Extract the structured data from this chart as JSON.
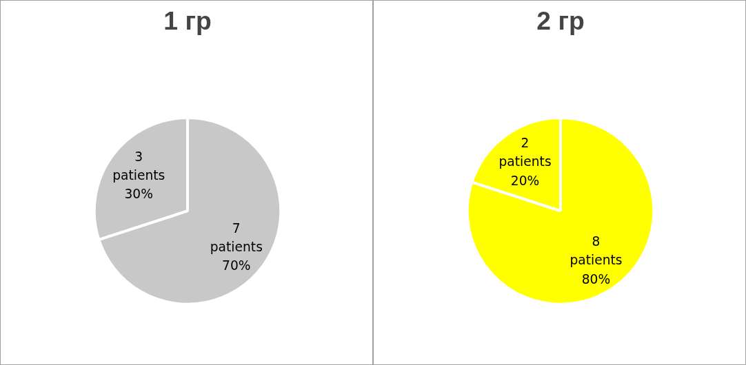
{
  "chart_data": [
    {
      "type": "pie",
      "title": "1 гр",
      "categories": [
        null,
        null
      ],
      "values": [
        3,
        7
      ],
      "colors": [
        "#c8c8c8",
        "#c8c8c8"
      ],
      "value_labels": [
        "3\npatients\n30%",
        "7\npatients\n70%"
      ]
    },
    {
      "type": "pie",
      "title": "2 гр",
      "categories": [
        null,
        null
      ],
      "values": [
        2,
        8
      ],
      "colors": [
        "#ffff00",
        "#ffff00"
      ],
      "value_labels": [
        "2\npatients\n20%",
        "8\npatients\n80%"
      ]
    }
  ]
}
